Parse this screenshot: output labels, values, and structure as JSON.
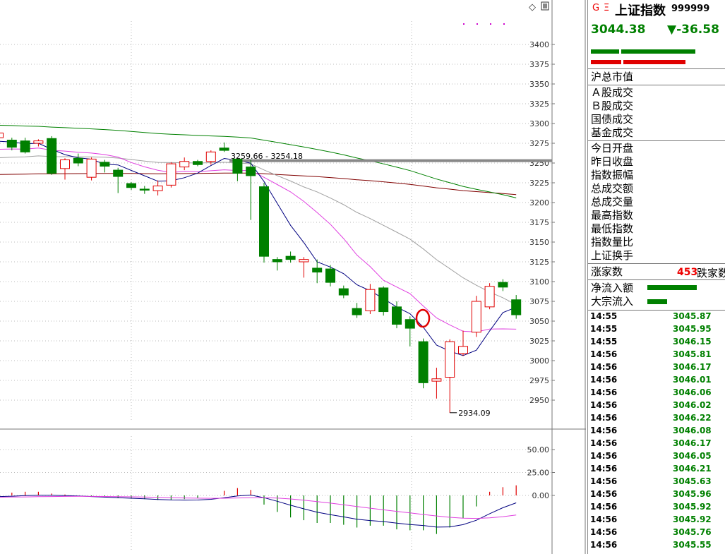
{
  "header": {
    "g_mark": "G",
    "eq_mark": "Ξ",
    "index_name": "上证指数",
    "index_code": "999999",
    "price": "3044.38",
    "change": "▼-36.58"
  },
  "market_labels": {
    "total_value": "沪总市值",
    "a_share_turnover": "Ａ股成交",
    "b_share_turnover": "Ｂ股成交",
    "bond_turnover": "国债成交",
    "fund_turnover": "基金成交",
    "today_open": "今日开盘",
    "prev_close": "昨日收盘",
    "amplitude": "指数振幅",
    "total_amount": "总成交额",
    "total_volume": "总成交量",
    "high": "最高指数",
    "low": "最低指数",
    "volume_ratio": "指数量比",
    "turnover_rate": "上证换手",
    "advancers": "涨家数",
    "advancers_count": "453",
    "decliners": "跌家数",
    "net_inflow": "净流入额",
    "block_inflow": "大宗流入"
  },
  "ticks": [
    {
      "time": "14:55",
      "value": "3045.87"
    },
    {
      "time": "14:55",
      "value": "3045.95"
    },
    {
      "time": "14:55",
      "value": "3046.15"
    },
    {
      "time": "14:56",
      "value": "3045.81"
    },
    {
      "time": "14:56",
      "value": "3046.17"
    },
    {
      "time": "14:56",
      "value": "3046.01"
    },
    {
      "time": "14:56",
      "value": "3046.06"
    },
    {
      "time": "14:56",
      "value": "3046.02"
    },
    {
      "time": "14:56",
      "value": "3046.22"
    },
    {
      "time": "14:56",
      "value": "3046.08"
    },
    {
      "time": "14:56",
      "value": "3046.17"
    },
    {
      "time": "14:56",
      "value": "3046.05"
    },
    {
      "time": "14:56",
      "value": "3046.21"
    },
    {
      "time": "14:56",
      "value": "3045.63"
    },
    {
      "time": "14:56",
      "value": "3045.96"
    },
    {
      "time": "14:56",
      "value": "3045.92"
    },
    {
      "time": "14:56",
      "value": "3045.92"
    },
    {
      "time": "14:56",
      "value": "3045.76"
    },
    {
      "time": "14:56",
      "value": "3045.55"
    }
  ],
  "colors": {
    "up": "#e00000",
    "down": "#008000",
    "ma5": "#000080",
    "ma10": "#e040e0",
    "ma20": "#a0a0a0",
    "ma60": "#008000",
    "ma120": "#800000"
  },
  "chart_data": {
    "type": "candlestick",
    "price_axis": {
      "ylim": [
        2925,
        3425
      ],
      "ticks": [
        "3400",
        "3375",
        "3350",
        "3325",
        "3300",
        "3275",
        "3250",
        "3225",
        "3200",
        "3175",
        "3150",
        "3125",
        "3100",
        "3075",
        "3050",
        "3025",
        "3000",
        "2975",
        "2950"
      ]
    },
    "candles": [
      {
        "o": 3282,
        "c": 3288,
        "h": 3290,
        "l": 3277
      },
      {
        "o": 3279,
        "c": 3270,
        "h": 3282,
        "l": 3266
      },
      {
        "o": 3278,
        "c": 3264,
        "h": 3282,
        "l": 3262
      },
      {
        "o": 3275,
        "c": 3278,
        "h": 3280,
        "l": 3271
      },
      {
        "o": 3281,
        "c": 3237,
        "h": 3284,
        "l": 3235
      },
      {
        "o": 3243,
        "c": 3254,
        "h": 3256,
        "l": 3229
      },
      {
        "o": 3256,
        "c": 3250,
        "h": 3262,
        "l": 3246
      },
      {
        "o": 3232,
        "c": 3255,
        "h": 3257,
        "l": 3228
      },
      {
        "o": 3251,
        "c": 3246,
        "h": 3254,
        "l": 3238
      },
      {
        "o": 3241,
        "c": 3233,
        "h": 3244,
        "l": 3212
      },
      {
        "o": 3224,
        "c": 3219,
        "h": 3226,
        "l": 3216
      },
      {
        "o": 3217,
        "c": 3216,
        "h": 3221,
        "l": 3211
      },
      {
        "o": 3215,
        "c": 3221,
        "h": 3228,
        "l": 3209
      },
      {
        "o": 3222,
        "c": 3249,
        "h": 3251,
        "l": 3219
      },
      {
        "o": 3245,
        "c": 3252,
        "h": 3257,
        "l": 3241
      },
      {
        "o": 3252,
        "c": 3248,
        "h": 3254,
        "l": 3246
      },
      {
        "o": 3252,
        "c": 3264,
        "h": 3266,
        "l": 3248
      },
      {
        "o": 3269,
        "c": 3266,
        "h": 3276,
        "l": 3264
      },
      {
        "o": 3255,
        "c": 3237,
        "h": 3256,
        "l": 3227
      },
      {
        "o": 3245,
        "c": 3234,
        "h": 3254,
        "l": 3178
      },
      {
        "o": 3220,
        "c": 3132,
        "h": 3225,
        "l": 3124
      },
      {
        "o": 3128,
        "c": 3125,
        "h": 3131,
        "l": 3114
      },
      {
        "o": 3132,
        "c": 3128,
        "h": 3138,
        "l": 3124
      },
      {
        "o": 3125,
        "c": 3128,
        "h": 3131,
        "l": 3105
      },
      {
        "o": 3117,
        "c": 3112,
        "h": 3128,
        "l": 3098
      },
      {
        "o": 3116,
        "c": 3099,
        "h": 3121,
        "l": 3094
      },
      {
        "o": 3091,
        "c": 3083,
        "h": 3095,
        "l": 3079
      },
      {
        "o": 3066,
        "c": 3058,
        "h": 3073,
        "l": 3054
      },
      {
        "o": 3063,
        "c": 3090,
        "h": 3097,
        "l": 3059
      },
      {
        "o": 3092,
        "c": 3062,
        "h": 3094,
        "l": 3057
      },
      {
        "o": 3068,
        "c": 3046,
        "h": 3075,
        "l": 3041
      },
      {
        "o": 3052,
        "c": 3041,
        "h": 3056,
        "l": 3018
      },
      {
        "o": 3024,
        "c": 2972,
        "h": 3028,
        "l": 2965
      },
      {
        "o": 2974,
        "c": 2977,
        "h": 2991,
        "l": 2952
      },
      {
        "o": 2979,
        "c": 3024,
        "h": 3027,
        "l": 2934.09
      },
      {
        "o": 3009,
        "c": 3018,
        "h": 3038,
        "l": 3006
      },
      {
        "o": 3036,
        "c": 3075,
        "h": 3082,
        "l": 3030
      },
      {
        "o": 3068,
        "c": 3094,
        "h": 3098,
        "l": 3065
      },
      {
        "o": 3099,
        "c": 3093,
        "h": 3103,
        "l": 3088
      },
      {
        "o": 3077,
        "c": 3058,
        "h": 3083,
        "l": 3053
      }
    ],
    "annotations": {
      "peak_label": "3259.66 - 3254.18",
      "low_label": "2934.09"
    },
    "indicator_axis": {
      "ylim": [
        -40,
        75
      ],
      "ticks": [
        "50.00",
        "25.00",
        "0.00"
      ]
    },
    "macd": [
      3,
      3,
      4,
      4,
      2,
      1,
      0,
      -1,
      -2,
      -3,
      -3,
      -4,
      -5,
      -5,
      -4,
      -3,
      0,
      5,
      8,
      6,
      -10,
      -18,
      -24,
      -27,
      -30,
      -30,
      -32,
      -35,
      -33,
      -33,
      -37,
      -38,
      -38,
      -42,
      -35,
      -25,
      -12,
      4,
      9,
      11
    ]
  }
}
